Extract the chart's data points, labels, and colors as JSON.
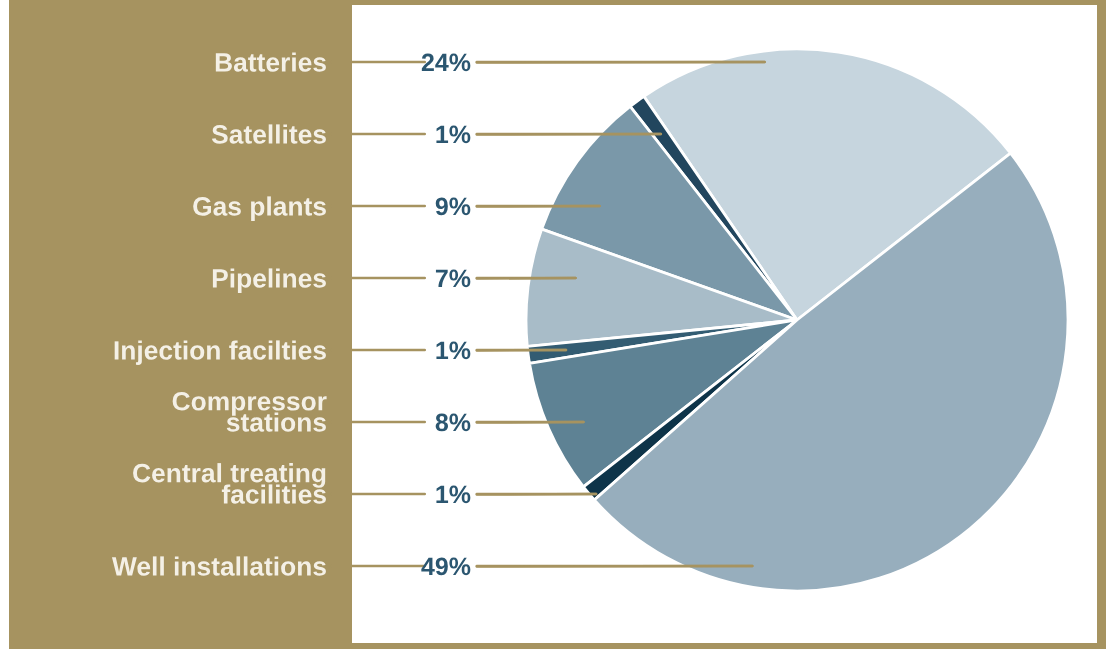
{
  "chart_data": {
    "type": "pie",
    "categories": [
      "Batteries",
      "Satellites",
      "Gas plants",
      "Pipelines",
      "Injection facilties",
      "Compressor\nstations",
      "Central treating\nfacilities",
      "Well installations"
    ],
    "values": [
      24,
      1,
      9,
      7,
      1,
      8,
      1,
      49
    ],
    "colors": [
      "#c6d5de",
      "#22465e",
      "#7a98a9",
      "#a8bcc8",
      "#335c72",
      "#5e8294",
      "#0e3449",
      "#97aebd"
    ],
    "value_labels": [
      "24%",
      "1%",
      "9%",
      "7%",
      "1%",
      "8%",
      "1%",
      "49%"
    ]
  }
}
